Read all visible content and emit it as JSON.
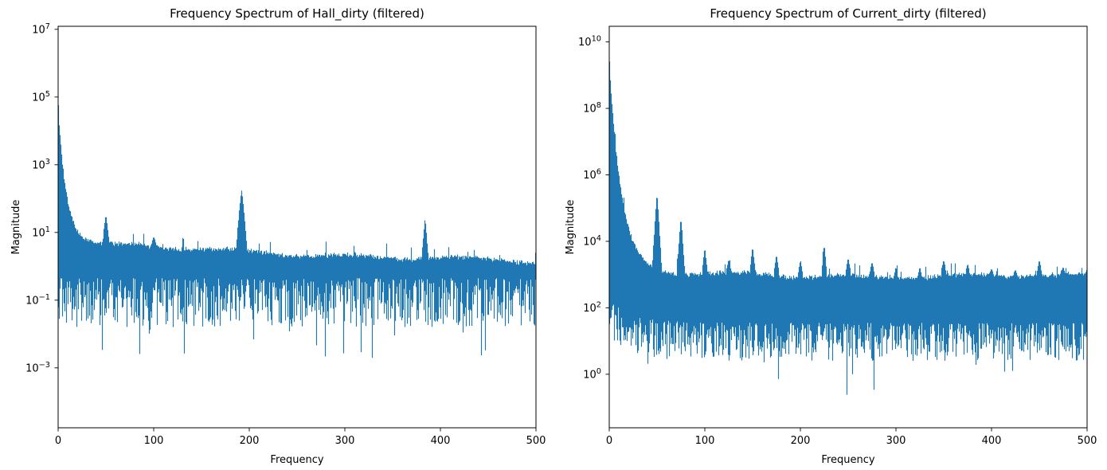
{
  "figure": {
    "background": "#ffffff",
    "frame_color": "#000000",
    "text_color": "#000000"
  },
  "chart_data": [
    {
      "type": "line",
      "title": "Frequency Spectrum of Hall_dirty (filtered)",
      "xlabel": "Frequency",
      "ylabel": "Magnitude",
      "xlim": [
        0,
        500
      ],
      "xticks": [
        0,
        100,
        200,
        300,
        400,
        500
      ],
      "ytick_exponents": [
        7,
        5,
        3,
        1,
        -1,
        -3
      ],
      "ylim_log10": [
        -4.77,
        7.09
      ],
      "yscale": "log",
      "grid": false,
      "legend": "none",
      "line_color": "#1f77b4",
      "dc_magnitude": 58000,
      "noise_band": {
        "top_magnitude_at_50hz": 4.5,
        "top_magnitude_at_500hz": 1.3,
        "bottom_magnitude_typical": 0.08,
        "bottom_magnitude_min": 0.001
      },
      "peaks": [
        {
          "frequency": 50,
          "magnitude": 33,
          "width_hz": 3.5
        },
        {
          "frequency": 100,
          "magnitude": 7.5,
          "width_hz": 3.0
        },
        {
          "frequency": 192,
          "magnitude": 178,
          "width_hz": 6.0
        },
        {
          "frequency": 384,
          "magnitude": 26,
          "width_hz": 3.5
        }
      ],
      "profile": {
        "dc_log": 4.76,
        "decay_tau_hz": 9,
        "floor_log_start": 0.66,
        "floor_log_slope": -0.0011,
        "band_bottom_log": -0.35,
        "band_bottom_spread": 1.45,
        "dip_probability": 0.045,
        "dip_extra_depth": 1.3,
        "low_freq_bottom_boost": 0,
        "seed": 42
      }
    },
    {
      "type": "line",
      "title": "Frequency Spectrum of Current_dirty (filtered)",
      "xlabel": "Frequency",
      "ylabel": "Magnitude",
      "xlim": [
        0,
        500
      ],
      "xticks": [
        0,
        100,
        200,
        300,
        400,
        500
      ],
      "ytick_exponents": [
        10,
        8,
        6,
        4,
        2,
        0
      ],
      "ylim_log10": [
        -1.61,
        10.47
      ],
      "yscale": "log",
      "grid": false,
      "legend": "none",
      "line_color": "#1f77b4",
      "dc_magnitude": 2600000000,
      "noise_band": {
        "top_magnitude_at_50hz": 1100,
        "top_magnitude_at_500hz": 850,
        "bottom_magnitude_typical": 15,
        "bottom_magnitude_min": 0.7
      },
      "peaks": [
        {
          "frequency": 50,
          "magnitude": 270000,
          "width_hz": 5.0
        },
        {
          "frequency": 75,
          "magnitude": 51000,
          "width_hz": 4.2
        },
        {
          "frequency": 100,
          "magnitude": 6300,
          "width_hz": 3.0
        },
        {
          "frequency": 125,
          "magnitude": 2800,
          "width_hz": 3.0
        },
        {
          "frequency": 150,
          "magnitude": 6800,
          "width_hz": 3.0
        },
        {
          "frequency": 175,
          "magnitude": 4000,
          "width_hz": 3.0
        },
        {
          "frequency": 200,
          "magnitude": 2600,
          "width_hz": 3.0
        },
        {
          "frequency": 225,
          "magnitude": 7900,
          "width_hz": 3.0
        },
        {
          "frequency": 250,
          "magnitude": 3200,
          "width_hz": 3.0
        },
        {
          "frequency": 275,
          "magnitude": 2400,
          "width_hz": 3.0
        },
        {
          "frequency": 300,
          "magnitude": 1700,
          "width_hz": 2.5
        },
        {
          "frequency": 325,
          "magnitude": 1700,
          "width_hz": 2.5
        },
        {
          "frequency": 350,
          "magnitude": 2800,
          "width_hz": 3.0
        },
        {
          "frequency": 375,
          "magnitude": 2100,
          "width_hz": 2.5
        },
        {
          "frequency": 400,
          "magnitude": 1500,
          "width_hz": 2.5
        },
        {
          "frequency": 425,
          "magnitude": 1400,
          "width_hz": 2.5
        },
        {
          "frequency": 450,
          "magnitude": 2800,
          "width_hz": 3.0
        },
        {
          "frequency": 475,
          "magnitude": 1700,
          "width_hz": 2.5
        }
      ],
      "profile": {
        "dc_log": 9.41,
        "decay_tau_hz": 13,
        "floor_log_start": 3.0,
        "floor_log_slope": -0.00012,
        "band_bottom_log": 1.55,
        "band_bottom_spread": 1.15,
        "dip_probability": 0.04,
        "dip_extra_depth": 1.2,
        "low_freq_bottom_boost": 0.7,
        "seed": 7
      }
    }
  ]
}
